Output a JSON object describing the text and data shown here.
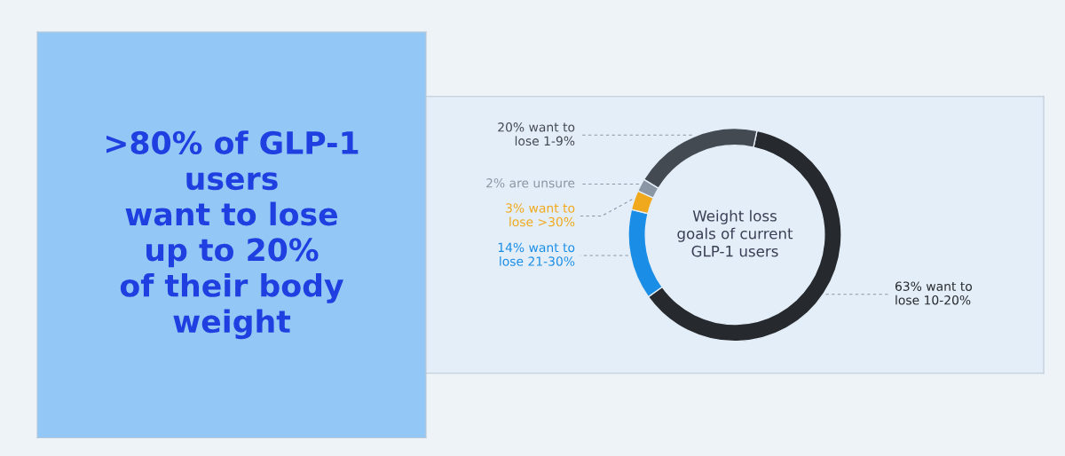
{
  "chart_data": [
    {
      "type": "other",
      "title": ">80% of GLP-1\nusers\nwant to lose\nup to 20%\nof their body\nweight"
    },
    {
      "type": "donut",
      "title": "Weight loss\ngoals of current\nGLP-1 users",
      "categories": [
        "63% want to\nlose 10-20%",
        "14% want to\nlose 21-30%",
        "3% want to\nlose >30%",
        "2% are unsure",
        "20% want to\nlose 1-9%"
      ],
      "values": [
        63,
        14,
        3,
        2,
        20
      ],
      "colors": [
        "#26292d",
        "#1a8ee6",
        "#f0a81c",
        "#8a96a3",
        "#444a52"
      ]
    }
  ]
}
